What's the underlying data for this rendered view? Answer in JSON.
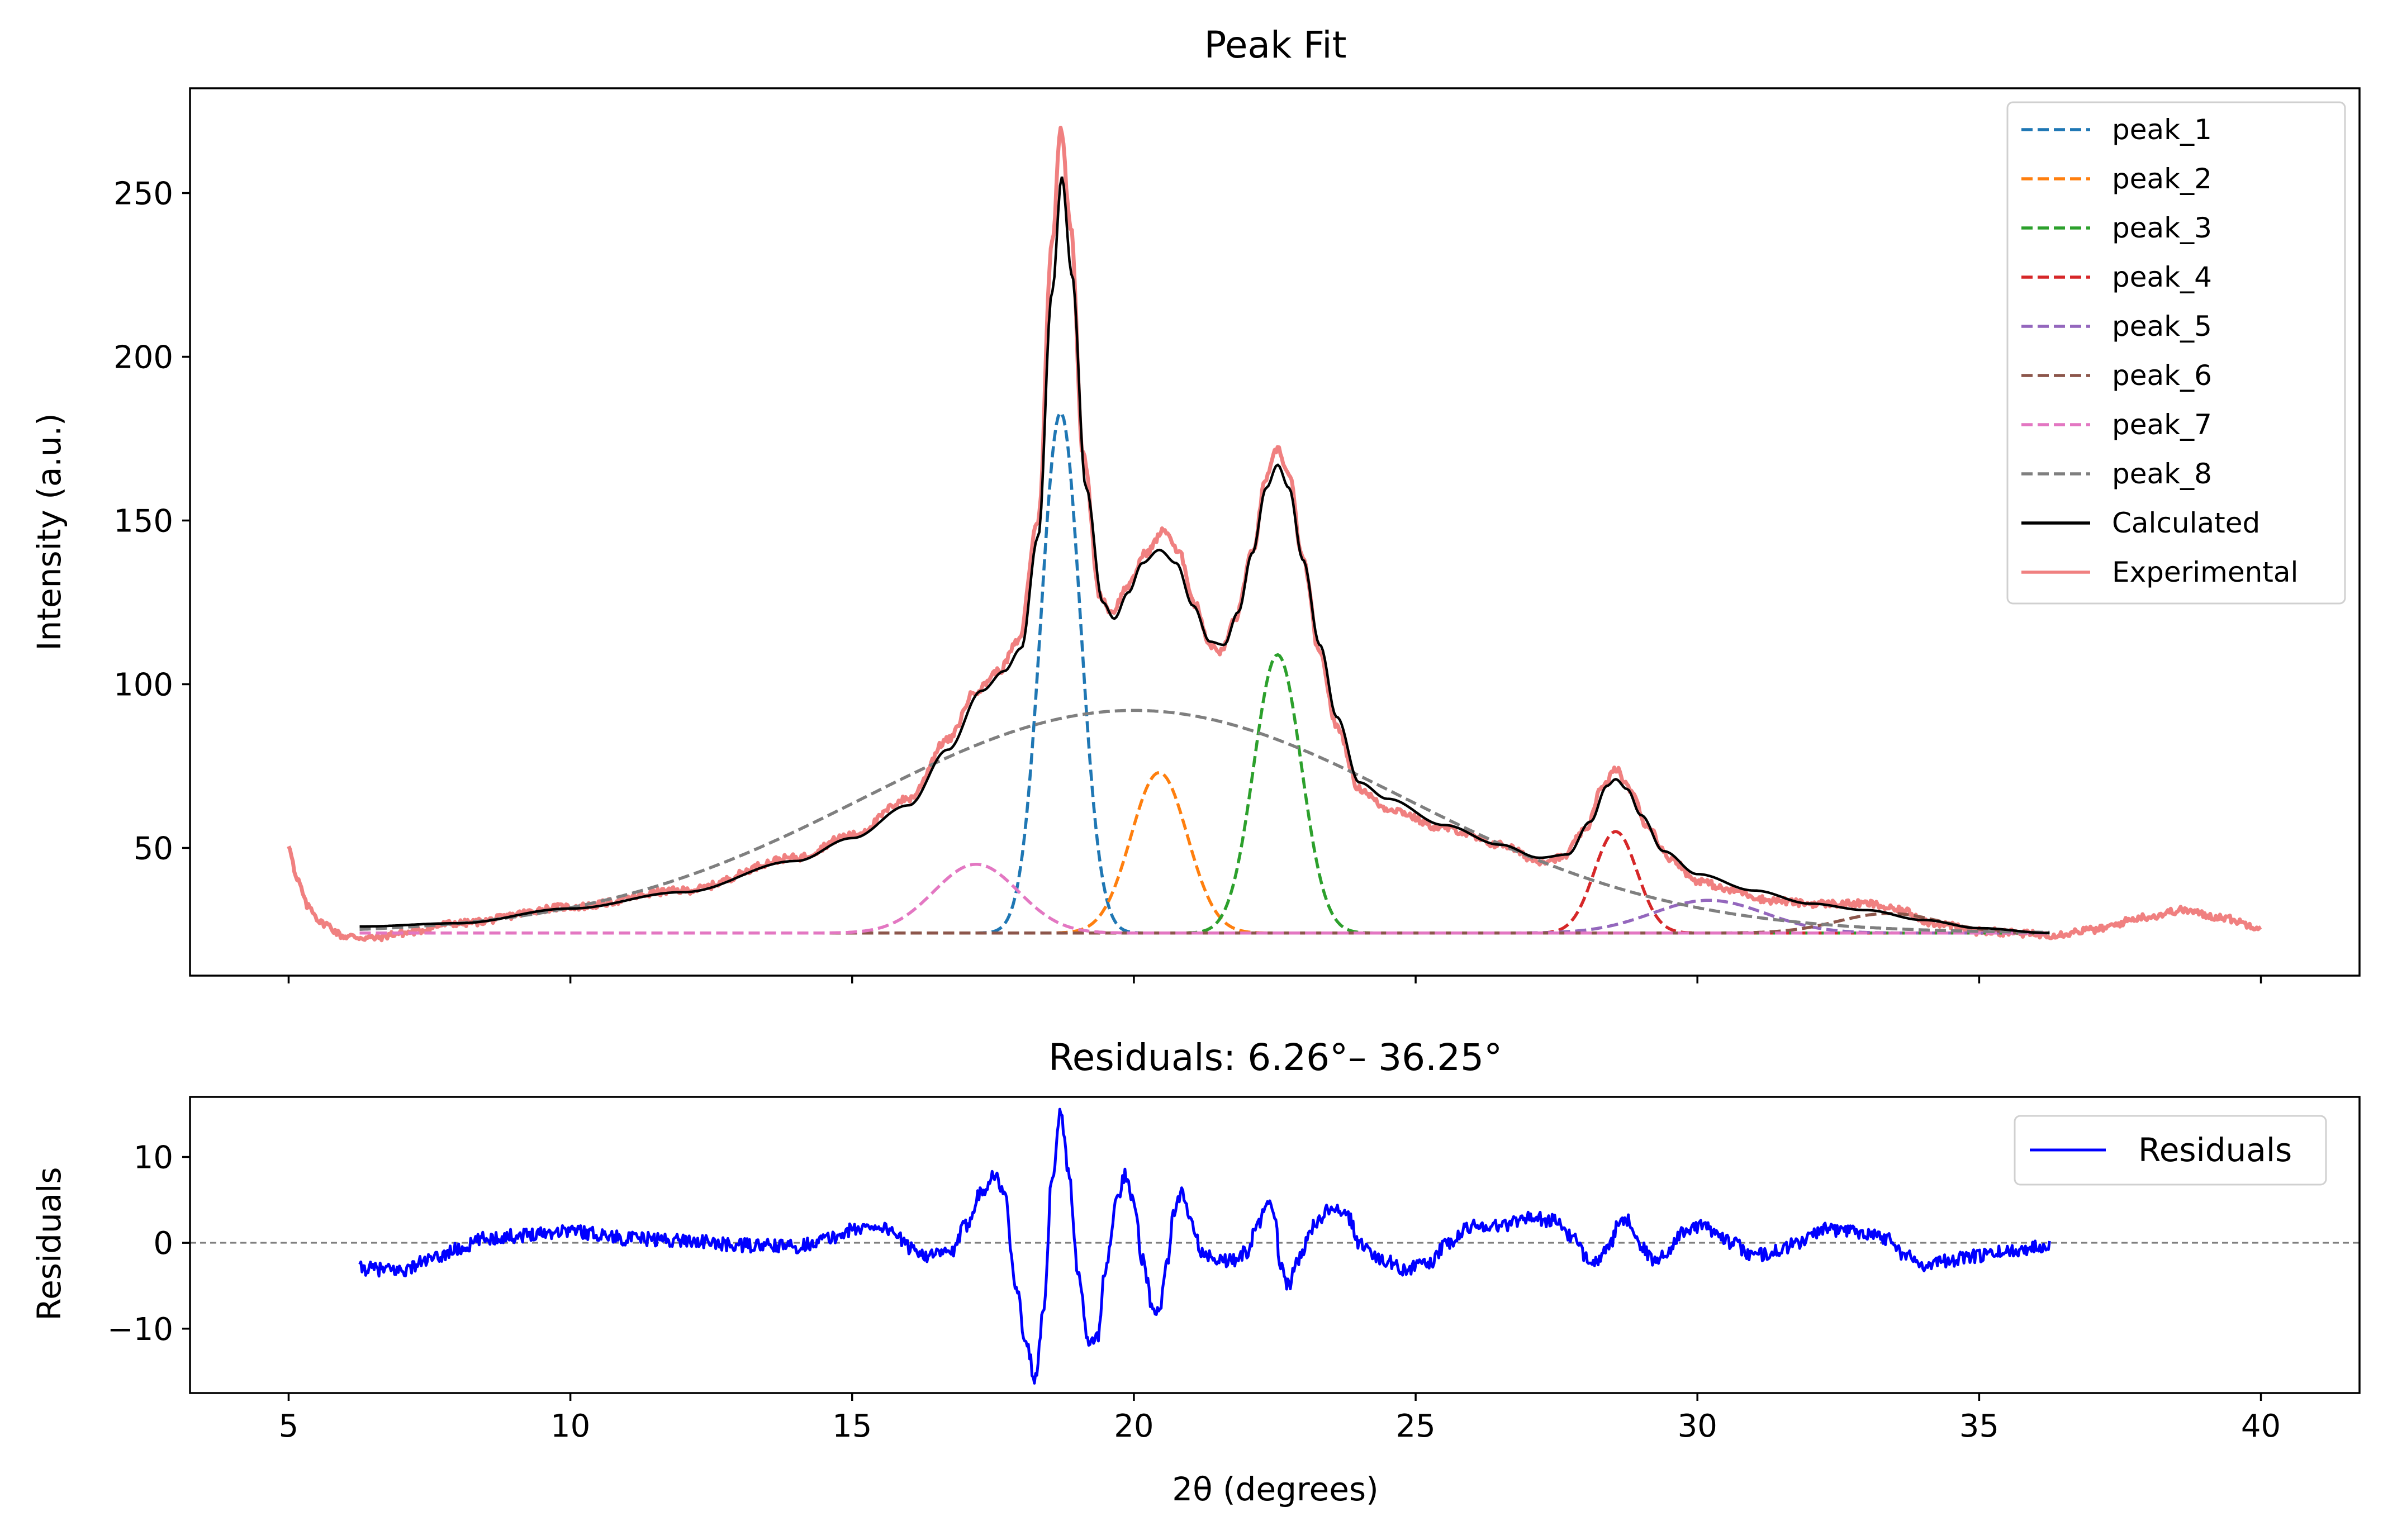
{
  "chart_data": [
    {
      "type": "line",
      "title": "Peak Fit",
      "xlabel": "",
      "ylabel": "Intensity (a.u.)",
      "xlim": [
        3.25,
        41.75
      ],
      "ylim": [
        11,
        282
      ],
      "xticks": [
        5,
        10,
        15,
        20,
        25,
        30,
        35,
        40
      ],
      "yticks": [
        50,
        100,
        150,
        200,
        250
      ],
      "ytick_labels": [
        "50",
        "100",
        "150",
        "200",
        "250"
      ],
      "tick_labels_x_visible": false,
      "legend": "top-right",
      "baseline": 24,
      "fit_range": [
        6.26,
        36.25
      ],
      "experimental_range": [
        5.0,
        40.0
      ],
      "series": [
        {
          "name": "peak_1",
          "key": "peak_1",
          "color": "#1f77b4",
          "style": "dashed",
          "shape": "gaussian",
          "center": 18.7,
          "height": 159,
          "width": 0.35
        },
        {
          "name": "peak_2",
          "key": "peak_2",
          "color": "#ff7f0e",
          "style": "dashed",
          "shape": "gaussian",
          "center": 20.45,
          "height": 49,
          "width": 0.5
        },
        {
          "name": "peak_3",
          "key": "peak_3",
          "color": "#2ca02c",
          "style": "dashed",
          "shape": "gaussian",
          "center": 22.55,
          "height": 85,
          "width": 0.42
        },
        {
          "name": "peak_4",
          "key": "peak_4",
          "color": "#d62728",
          "style": "dashed",
          "shape": "gaussian",
          "center": 28.55,
          "height": 31,
          "width": 0.38
        },
        {
          "name": "peak_5",
          "key": "peak_5",
          "color": "#9467bd",
          "style": "dashed",
          "shape": "gaussian",
          "center": 30.2,
          "height": 10,
          "width": 1.0
        },
        {
          "name": "peak_6",
          "key": "peak_6",
          "color": "#8c564b",
          "style": "dashed",
          "shape": "gaussian",
          "center": 33.4,
          "height": 6,
          "width": 0.9
        },
        {
          "name": "peak_7",
          "key": "peak_7",
          "color": "#e377c2",
          "style": "dashed",
          "shape": "gaussian",
          "center": 17.2,
          "height": 21,
          "width": 0.75
        },
        {
          "name": "peak_8",
          "key": "peak_8",
          "color": "#7f7f7f",
          "style": "dashed",
          "shape": "gaussian",
          "center": 20.0,
          "height": 68,
          "width": 4.8
        },
        {
          "name": "Calculated",
          "key": "calculated",
          "color": "#000000",
          "style": "solid",
          "points": [
            [
              6.26,
              26
            ],
            [
              8,
              27
            ],
            [
              10,
              31.5
            ],
            [
              12,
              36.5
            ],
            [
              14,
              46
            ],
            [
              15,
              53
            ],
            [
              16,
              63
            ],
            [
              16.7,
              80
            ],
            [
              17.3,
              98
            ],
            [
              17.7,
              104
            ],
            [
              18.0,
              111
            ],
            [
              18.3,
              145
            ],
            [
              18.55,
              220
            ],
            [
              18.72,
              255
            ],
            [
              18.9,
              225
            ],
            [
              19.15,
              160
            ],
            [
              19.45,
              125
            ],
            [
              19.65,
              120
            ],
            [
              19.9,
              128
            ],
            [
              20.15,
              137
            ],
            [
              20.45,
              141
            ],
            [
              20.75,
              137
            ],
            [
              21.05,
              124
            ],
            [
              21.35,
              113
            ],
            [
              21.6,
              112
            ],
            [
              21.85,
              122
            ],
            [
              22.1,
              140
            ],
            [
              22.35,
              160
            ],
            [
              22.55,
              167
            ],
            [
              22.75,
              160
            ],
            [
              23.0,
              138
            ],
            [
              23.3,
              112
            ],
            [
              23.6,
              90
            ],
            [
              24.0,
              70
            ],
            [
              24.5,
              65
            ],
            [
              25.5,
              57
            ],
            [
              26.5,
              51
            ],
            [
              27.2,
              47
            ],
            [
              27.7,
              48
            ],
            [
              28.1,
              58
            ],
            [
              28.4,
              69
            ],
            [
              28.55,
              71
            ],
            [
              28.75,
              68
            ],
            [
              29.0,
              60
            ],
            [
              29.4,
              49
            ],
            [
              30.0,
              42
            ],
            [
              31.0,
              37
            ],
            [
              32.0,
              33
            ],
            [
              33.0,
              31
            ],
            [
              34.0,
              28
            ],
            [
              35.0,
              25.5
            ],
            [
              36.25,
              24
            ]
          ]
        },
        {
          "name": "Experimental",
          "key": "experimental",
          "color": "#f08080",
          "style": "solid",
          "points": [
            [
              5.0,
              51
            ],
            [
              5.15,
              40
            ],
            [
              5.35,
              32
            ],
            [
              5.6,
              27
            ],
            [
              6.0,
              23
            ],
            [
              6.5,
              22.5
            ],
            [
              7.0,
              24
            ],
            [
              8.0,
              27
            ],
            [
              10,
              32
            ],
            [
              12,
              37
            ],
            [
              14,
              47
            ],
            [
              15,
              54
            ],
            [
              16,
              65
            ],
            [
              16.7,
              83
            ],
            [
              17.2,
              98
            ],
            [
              17.6,
              104
            ],
            [
              17.95,
              113
            ],
            [
              18.3,
              150
            ],
            [
              18.55,
              235
            ],
            [
              18.7,
              270
            ],
            [
              18.88,
              240
            ],
            [
              19.1,
              170
            ],
            [
              19.4,
              127
            ],
            [
              19.6,
              122
            ],
            [
              19.9,
              130
            ],
            [
              20.2,
              140
            ],
            [
              20.55,
              147
            ],
            [
              20.8,
              140
            ],
            [
              21.1,
              124
            ],
            [
              21.35,
              112
            ],
            [
              21.55,
              110
            ],
            [
              21.8,
              120
            ],
            [
              22.1,
              140
            ],
            [
              22.35,
              163
            ],
            [
              22.55,
              172
            ],
            [
              22.75,
              164
            ],
            [
              23.0,
              138
            ],
            [
              23.3,
              109
            ],
            [
              23.6,
              87
            ],
            [
              24.0,
              68
            ],
            [
              24.5,
              62
            ],
            [
              25.5,
              56
            ],
            [
              26.5,
              51
            ],
            [
              27.2,
              46
            ],
            [
              27.6,
              47
            ],
            [
              28.0,
              55
            ],
            [
              28.3,
              68
            ],
            [
              28.55,
              74
            ],
            [
              28.8,
              68
            ],
            [
              29.1,
              57
            ],
            [
              29.5,
              47
            ],
            [
              30.0,
              40
            ],
            [
              30.6,
              37
            ],
            [
              31.3,
              34
            ],
            [
              32.0,
              33
            ],
            [
              33.0,
              33
            ],
            [
              33.6,
              31
            ],
            [
              34.2,
              27
            ],
            [
              35.0,
              24.5
            ],
            [
              36.3,
              23.5
            ],
            [
              37.0,
              25
            ],
            [
              38.0,
              29
            ],
            [
              38.6,
              31
            ],
            [
              39.2,
              29
            ],
            [
              40.0,
              26
            ]
          ]
        }
      ]
    },
    {
      "type": "line",
      "title": "Residuals: 6.26°– 36.25°",
      "xlabel": "2θ (degrees)",
      "ylabel": "Residuals",
      "xlim": [
        3.25,
        41.75
      ],
      "ylim": [
        -17.5,
        17.0
      ],
      "xticks": [
        5,
        10,
        15,
        20,
        25,
        30,
        35,
        40
      ],
      "xtick_labels": [
        "5",
        "10",
        "15",
        "20",
        "25",
        "30",
        "35",
        "40"
      ],
      "yticks": [
        -10,
        0,
        10
      ],
      "ytick_labels": [
        "−10",
        "0",
        "10"
      ],
      "zero_line": true,
      "legend": "top-right",
      "series": [
        {
          "name": "Residuals",
          "color": "#0000ff",
          "style": "solid",
          "points": [
            [
              6.26,
              -3
            ],
            [
              7,
              -3.2
            ],
            [
              7.5,
              -2
            ],
            [
              8,
              -0.8
            ],
            [
              8.5,
              0.5
            ],
            [
              9,
              0.8
            ],
            [
              9.5,
              1.2
            ],
            [
              10,
              1.5
            ],
            [
              10.5,
              1.0
            ],
            [
              11,
              0.5
            ],
            [
              12,
              0.3
            ],
            [
              13,
              -0.3
            ],
            [
              14,
              -0.4
            ],
            [
              14.6,
              0.5
            ],
            [
              15,
              1.5
            ],
            [
              15.4,
              2.0
            ],
            [
              15.7,
              1.5
            ],
            [
              16,
              -0.5
            ],
            [
              16.4,
              -1.5
            ],
            [
              16.8,
              -1.0
            ],
            [
              17.0,
              2
            ],
            [
              17.3,
              6
            ],
            [
              17.5,
              8
            ],
            [
              17.7,
              6
            ],
            [
              17.9,
              -5
            ],
            [
              18.1,
              -12
            ],
            [
              18.25,
              -16
            ],
            [
              18.4,
              -8
            ],
            [
              18.55,
              8
            ],
            [
              18.7,
              15
            ],
            [
              18.85,
              8
            ],
            [
              19.0,
              -3
            ],
            [
              19.2,
              -12
            ],
            [
              19.35,
              -11
            ],
            [
              19.5,
              -3
            ],
            [
              19.7,
              5
            ],
            [
              19.85,
              8
            ],
            [
              20.0,
              5
            ],
            [
              20.15,
              -2
            ],
            [
              20.35,
              -8
            ],
            [
              20.45,
              -8
            ],
            [
              20.6,
              -2
            ],
            [
              20.7,
              3
            ],
            [
              20.85,
              6
            ],
            [
              21.0,
              3
            ],
            [
              21.2,
              -1
            ],
            [
              21.5,
              -2
            ],
            [
              21.8,
              -2
            ],
            [
              22.0,
              -1
            ],
            [
              22.2,
              2
            ],
            [
              22.35,
              5
            ],
            [
              22.5,
              3
            ],
            [
              22.6,
              -3
            ],
            [
              22.75,
              -5
            ],
            [
              22.9,
              -2
            ],
            [
              23.2,
              2
            ],
            [
              23.5,
              4
            ],
            [
              23.8,
              3
            ],
            [
              24.0,
              0
            ],
            [
              24.4,
              -2
            ],
            [
              24.8,
              -3
            ],
            [
              25.2,
              -2.5
            ],
            [
              25.6,
              0
            ],
            [
              26,
              2
            ],
            [
              26.5,
              2
            ],
            [
              27,
              3
            ],
            [
              27.5,
              2.5
            ],
            [
              27.8,
              0.5
            ],
            [
              28.0,
              -1.5
            ],
            [
              28.2,
              -2
            ],
            [
              28.4,
              -1
            ],
            [
              28.6,
              2
            ],
            [
              28.8,
              2.5
            ],
            [
              29.0,
              -0.5
            ],
            [
              29.2,
              -2
            ],
            [
              29.4,
              -1.5
            ],
            [
              29.7,
              1
            ],
            [
              30.0,
              2
            ],
            [
              30.3,
              1.5
            ],
            [
              30.6,
              0
            ],
            [
              31.0,
              -1.5
            ],
            [
              31.4,
              -1
            ],
            [
              31.8,
              0
            ],
            [
              32.2,
              1.5
            ],
            [
              32.6,
              1.5
            ],
            [
              33.0,
              1.2
            ],
            [
              33.4,
              0.5
            ],
            [
              33.7,
              -1.5
            ],
            [
              34.0,
              -2.5
            ],
            [
              34.5,
              -2
            ],
            [
              35.0,
              -1.5
            ],
            [
              35.5,
              -1
            ],
            [
              36.0,
              -0.5
            ],
            [
              36.25,
              0
            ]
          ]
        }
      ]
    }
  ]
}
